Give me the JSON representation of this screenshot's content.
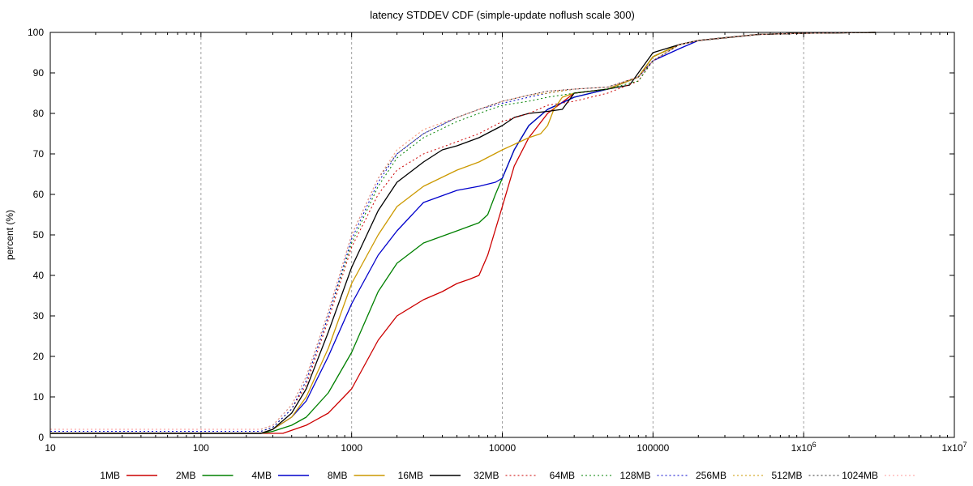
{
  "chart_data": {
    "type": "line",
    "title": "latency STDDEV CDF (simple-update noflush scale 300)",
    "ylabel": "percent (%)",
    "xlabel": "",
    "x_scale": "log",
    "xlim": [
      10,
      10000000
    ],
    "ylim": [
      0,
      100
    ],
    "x_tick_values": [
      10,
      100,
      1000,
      10000,
      100000,
      1000000,
      10000000
    ],
    "x_tick_labels": [
      "10",
      "100",
      "1000",
      "10000",
      "100000",
      "1x10",
      "1x10"
    ],
    "x_tick_superscripts": [
      "",
      "",
      "",
      "",
      "",
      "6",
      "7"
    ],
    "y_ticks": [
      0,
      10,
      20,
      30,
      40,
      50,
      60,
      70,
      80,
      90,
      100
    ],
    "grid": true,
    "grid_x_only": true,
    "legend_position": "bottom",
    "series": [
      {
        "name": "1MB",
        "color": "#cc0000",
        "dash": "solid",
        "x": [
          10,
          300,
          350,
          500,
          700,
          1000,
          1500,
          2000,
          3000,
          4000,
          5000,
          6000,
          7000,
          8000,
          10000,
          12000,
          15000,
          20000,
          30000,
          50000,
          80000,
          100000,
          150000,
          200000,
          500000,
          1000000,
          3000000
        ],
        "y": [
          1,
          1,
          1,
          3,
          6,
          12,
          24,
          30,
          34,
          36,
          38,
          39,
          40,
          45,
          57,
          67,
          74,
          80,
          85,
          86,
          89,
          94,
          97,
          98,
          99.5,
          99.8,
          100
        ]
      },
      {
        "name": "2MB",
        "color": "#008000",
        "dash": "solid",
        "x": [
          10,
          250,
          300,
          400,
          500,
          700,
          1000,
          1500,
          2000,
          3000,
          5000,
          7000,
          8000,
          9000,
          10000,
          12000,
          15000,
          20000,
          30000,
          50000,
          80000,
          100000,
          150000,
          200000,
          500000,
          1000000,
          3000000
        ],
        "y": [
          1,
          1,
          1.5,
          3,
          5,
          11,
          21,
          36,
          43,
          48,
          51,
          53,
          55,
          60,
          64,
          71,
          77,
          81,
          84,
          86,
          89,
          94,
          97,
          98,
          99.5,
          99.8,
          100
        ]
      },
      {
        "name": "4MB",
        "color": "#0000cc",
        "dash": "solid",
        "x": [
          10,
          250,
          300,
          400,
          500,
          700,
          1000,
          1500,
          2000,
          3000,
          5000,
          7000,
          9000,
          10000,
          12000,
          15000,
          20000,
          30000,
          50000,
          80000,
          100000,
          150000,
          200000,
          500000,
          1000000,
          3000000
        ],
        "y": [
          1,
          1,
          2,
          5,
          9,
          20,
          33,
          45,
          51,
          58,
          61,
          62,
          63,
          64,
          71,
          77,
          81,
          84,
          86,
          89,
          93,
          96,
          98,
          99.5,
          99.8,
          100
        ]
      },
      {
        "name": "8MB",
        "color": "#cc9900",
        "dash": "solid",
        "x": [
          10,
          250,
          300,
          400,
          500,
          700,
          1000,
          1500,
          2000,
          3000,
          5000,
          7000,
          10000,
          15000,
          18000,
          20000,
          22000,
          25000,
          30000,
          50000,
          80000,
          100000,
          150000,
          200000,
          500000,
          1000000,
          3000000
        ],
        "y": [
          1,
          1,
          2,
          5,
          10,
          22,
          38,
          50,
          57,
          62,
          66,
          68,
          71,
          74,
          75,
          77,
          81,
          84,
          85,
          86,
          89,
          94,
          97,
          98,
          99.5,
          99.8,
          100
        ]
      },
      {
        "name": "16MB",
        "color": "#000000",
        "dash": "solid",
        "x": [
          10,
          250,
          300,
          400,
          500,
          700,
          1000,
          1500,
          2000,
          3000,
          4000,
          5000,
          7000,
          10000,
          12000,
          15000,
          20000,
          25000,
          30000,
          50000,
          70000,
          80000,
          100000,
          150000,
          200000,
          500000,
          1000000,
          3000000
        ],
        "y": [
          1,
          1,
          2,
          6,
          12,
          26,
          42,
          56,
          63,
          68,
          71,
          72,
          74,
          77,
          79,
          80,
          80.5,
          81,
          85,
          86,
          87,
          90,
          95,
          97,
          98,
          99.5,
          99.8,
          100
        ]
      },
      {
        "name": "32MB",
        "color": "#cc0000",
        "dash": "dotted",
        "x": [
          10,
          250,
          300,
          400,
          500,
          700,
          1000,
          1500,
          2000,
          3000,
          5000,
          7000,
          10000,
          15000,
          20000,
          30000,
          50000,
          80000,
          100000,
          150000,
          200000,
          500000,
          1000000,
          3000000
        ],
        "y": [
          1.5,
          1.5,
          2.5,
          7,
          13,
          29,
          47,
          60,
          66,
          70,
          73,
          75,
          78,
          80,
          82,
          83,
          85,
          88,
          93,
          97,
          98,
          99.5,
          99.8,
          100
        ]
      },
      {
        "name": "64MB",
        "color": "#008000",
        "dash": "dotted",
        "x": [
          10,
          250,
          300,
          400,
          500,
          700,
          1000,
          1500,
          2000,
          3000,
          5000,
          7000,
          10000,
          15000,
          20000,
          30000,
          50000,
          80000,
          100000,
          150000,
          200000,
          500000,
          1000000,
          3000000
        ],
        "y": [
          1.5,
          1.5,
          2.5,
          7,
          14,
          30,
          48,
          62,
          69,
          74,
          78,
          80,
          82,
          83,
          84,
          85,
          86,
          88,
          93,
          97,
          98,
          99.5,
          99.8,
          100
        ]
      },
      {
        "name": "128MB",
        "color": "#0000cc",
        "dash": "dotted",
        "x": [
          10,
          250,
          300,
          400,
          500,
          700,
          1000,
          1500,
          2000,
          3000,
          5000,
          7000,
          10000,
          15000,
          20000,
          30000,
          50000,
          80000,
          100000,
          150000,
          200000,
          500000,
          1000000,
          3000000
        ],
        "y": [
          1.5,
          1.5,
          2.5,
          7,
          14,
          30,
          49,
          63,
          70,
          75,
          79,
          81,
          82.5,
          84,
          85,
          86,
          86.5,
          89,
          93,
          97,
          98,
          99.5,
          99.8,
          100
        ]
      },
      {
        "name": "256MB",
        "color": "#cc9900",
        "dash": "dotted",
        "x": [
          10,
          250,
          300,
          400,
          500,
          700,
          1000,
          1500,
          2000,
          3000,
          5000,
          7000,
          10000,
          15000,
          20000,
          30000,
          50000,
          80000,
          100000,
          150000,
          200000,
          500000,
          1000000,
          3000000
        ],
        "y": [
          2,
          2,
          3,
          8,
          15,
          31,
          50,
          64,
          71,
          76,
          79,
          81,
          83,
          84.5,
          85,
          86,
          86.5,
          89,
          93,
          97,
          98,
          99.5,
          99.8,
          100
        ]
      },
      {
        "name": "512MB",
        "color": "#333333",
        "dash": "dotted",
        "x": [
          10,
          250,
          300,
          400,
          500,
          700,
          1000,
          1500,
          2000,
          3000,
          5000,
          7000,
          10000,
          15000,
          20000,
          30000,
          50000,
          80000,
          100000,
          150000,
          200000,
          500000,
          1000000,
          3000000
        ],
        "y": [
          2,
          2,
          3,
          8,
          15,
          31,
          50,
          64,
          70,
          75,
          79,
          81,
          83,
          84.5,
          85.5,
          86,
          86.5,
          89,
          93,
          97,
          98,
          99.5,
          99.8,
          100
        ]
      },
      {
        "name": "1024MB",
        "color": "#ff9999",
        "dash": "dotted",
        "x": [
          10,
          250,
          300,
          400,
          500,
          700,
          1000,
          1500,
          2000,
          3000,
          5000,
          7000,
          10000,
          15000,
          20000,
          30000,
          50000,
          80000,
          100000,
          150000,
          200000,
          500000,
          1000000,
          3000000
        ],
        "y": [
          2,
          2,
          3,
          8,
          15,
          31,
          50,
          64,
          71,
          76,
          79,
          81,
          83,
          84.5,
          85.5,
          86,
          86.5,
          89,
          93,
          97,
          98,
          99.5,
          99.8,
          100
        ]
      }
    ]
  }
}
